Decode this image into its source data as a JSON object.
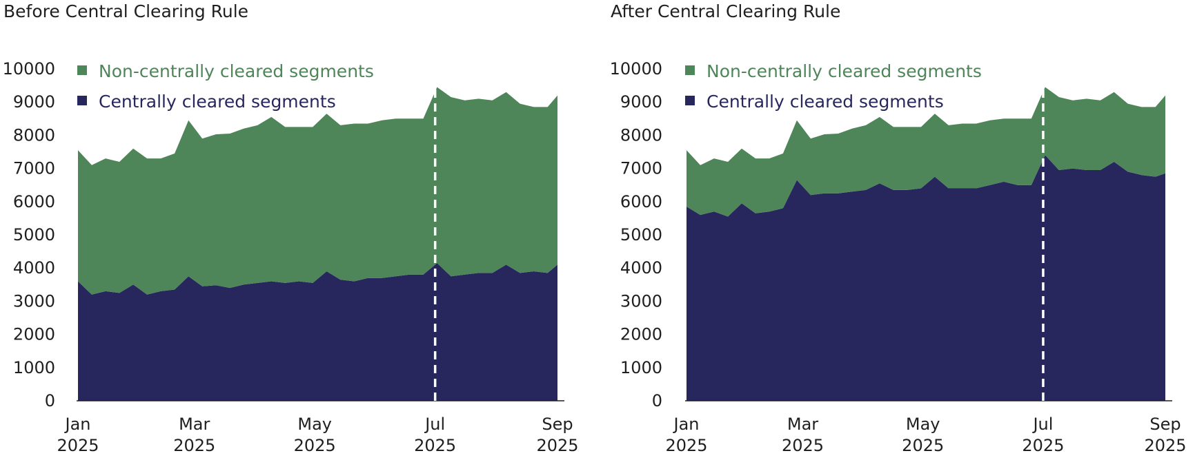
{
  "chart_data": [
    {
      "type": "area",
      "stacked": true,
      "title": "Before Central Clearing Rule",
      "x": [
        "2025-01-01",
        "2025-01-08",
        "2025-01-15",
        "2025-01-22",
        "2025-01-29",
        "2025-02-05",
        "2025-02-12",
        "2025-02-19",
        "2025-02-26",
        "2025-03-05",
        "2025-03-12",
        "2025-03-19",
        "2025-03-26",
        "2025-04-02",
        "2025-04-09",
        "2025-04-16",
        "2025-04-23",
        "2025-04-30",
        "2025-05-07",
        "2025-05-14",
        "2025-05-21",
        "2025-05-28",
        "2025-06-04",
        "2025-06-11",
        "2025-06-18",
        "2025-06-25",
        "2025-07-02",
        "2025-07-09",
        "2025-07-16",
        "2025-07-23",
        "2025-07-30",
        "2025-08-06",
        "2025-08-13",
        "2025-08-20",
        "2025-08-27",
        "2025-09-01"
      ],
      "series": [
        {
          "name": "Centrally cleared segments",
          "color": "#27275e",
          "values": [
            3600,
            3200,
            3300,
            3250,
            3500,
            3200,
            3300,
            3350,
            3750,
            3450,
            3480,
            3400,
            3500,
            3550,
            3600,
            3550,
            3600,
            3550,
            3900,
            3650,
            3600,
            3700,
            3700,
            3750,
            3800,
            3800,
            4150,
            3750,
            3800,
            3850,
            3850,
            4100,
            3850,
            3900,
            3850,
            4100
          ]
        },
        {
          "name": "Non-centrally cleared segments",
          "color": "#4e8559",
          "values": [
            3950,
            3900,
            4000,
            3950,
            4100,
            4100,
            4000,
            4100,
            4700,
            4450,
            4550,
            4650,
            4700,
            4750,
            4950,
            4700,
            4650,
            4700,
            4750,
            4650,
            4750,
            4650,
            4750,
            4750,
            4700,
            4700,
            5300,
            5400,
            5250,
            5250,
            5200,
            5200,
            5100,
            4950,
            5000,
            5100
          ]
        }
      ],
      "xticks": [
        [
          "Jan",
          "2025"
        ],
        [
          "Mar",
          "2025"
        ],
        [
          "May",
          "2025"
        ],
        [
          "Jul",
          "2025"
        ],
        [
          "Sep",
          "2025"
        ]
      ],
      "xtick_dates": [
        "2025-01-01",
        "2025-03-01",
        "2025-05-01",
        "2025-07-01",
        "2025-09-01"
      ],
      "yticks": [
        0,
        1000,
        2000,
        3000,
        4000,
        5000,
        6000,
        7000,
        8000,
        9000,
        10000
      ],
      "ylim": [
        0,
        10000
      ],
      "marker": {
        "date": "2025-07-01",
        "style": "dashed",
        "color": "#ffffff"
      },
      "legend": "top-left"
    },
    {
      "type": "area",
      "stacked": true,
      "title": "After Central Clearing Rule",
      "x": [
        "2025-01-01",
        "2025-01-08",
        "2025-01-15",
        "2025-01-22",
        "2025-01-29",
        "2025-02-05",
        "2025-02-12",
        "2025-02-19",
        "2025-02-26",
        "2025-03-05",
        "2025-03-12",
        "2025-03-19",
        "2025-03-26",
        "2025-04-02",
        "2025-04-09",
        "2025-04-16",
        "2025-04-23",
        "2025-04-30",
        "2025-05-07",
        "2025-05-14",
        "2025-05-21",
        "2025-05-28",
        "2025-06-04",
        "2025-06-11",
        "2025-06-18",
        "2025-06-25",
        "2025-07-02",
        "2025-07-09",
        "2025-07-16",
        "2025-07-23",
        "2025-07-30",
        "2025-08-06",
        "2025-08-13",
        "2025-08-20",
        "2025-08-27",
        "2025-09-01"
      ],
      "series": [
        {
          "name": "Centrally cleared segments",
          "color": "#27275e",
          "values": [
            5850,
            5600,
            5700,
            5550,
            5950,
            5650,
            5700,
            5800,
            6650,
            6200,
            6250,
            6250,
            6300,
            6350,
            6550,
            6350,
            6350,
            6400,
            6750,
            6400,
            6400,
            6400,
            6500,
            6600,
            6500,
            6500,
            7400,
            6950,
            7000,
            6950,
            6950,
            7200,
            6900,
            6800,
            6750,
            6850
          ]
        },
        {
          "name": "Non-centrally cleared segments",
          "color": "#4e8559",
          "values": [
            1700,
            1500,
            1600,
            1650,
            1650,
            1650,
            1600,
            1650,
            1800,
            1700,
            1780,
            1800,
            1900,
            1950,
            2000,
            1900,
            1900,
            1850,
            1900,
            1900,
            1950,
            1950,
            1950,
            1900,
            2000,
            2000,
            2050,
            2200,
            2050,
            2150,
            2100,
            2100,
            2050,
            2050,
            2100,
            2350
          ]
        }
      ],
      "xticks": [
        [
          "Jan",
          "2025"
        ],
        [
          "Mar",
          "2025"
        ],
        [
          "May",
          "2025"
        ],
        [
          "Jul",
          "2025"
        ],
        [
          "Sep",
          "2025"
        ]
      ],
      "xtick_dates": [
        "2025-01-01",
        "2025-03-01",
        "2025-05-01",
        "2025-07-01",
        "2025-09-01"
      ],
      "yticks": [
        0,
        1000,
        2000,
        3000,
        4000,
        5000,
        6000,
        7000,
        8000,
        9000,
        10000
      ],
      "ylim": [
        0,
        10000
      ],
      "marker": {
        "date": "2025-07-01",
        "style": "dashed",
        "color": "#ffffff"
      },
      "legend": "top-left"
    }
  ]
}
